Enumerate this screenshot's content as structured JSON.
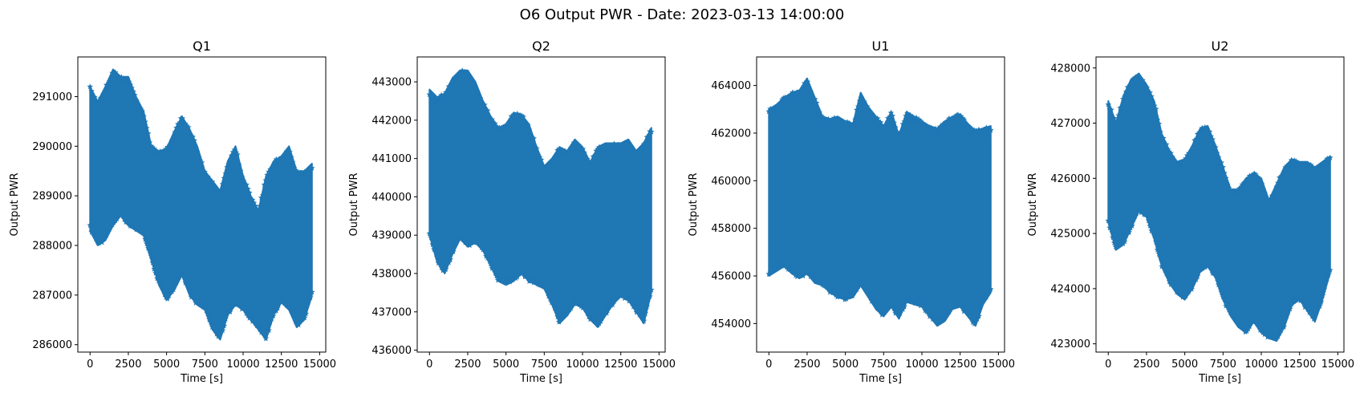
{
  "figure": {
    "title": "O6 Output PWR - Date: 2023-03-13 14:00:00"
  },
  "chart_data": [
    {
      "type": "scatter",
      "marker": "star",
      "color": "#1f77b4",
      "title": "Q1",
      "xlabel": "Time [s]",
      "ylabel": "Output PWR",
      "xlim": [
        -800,
        15400
      ],
      "ylim": [
        285850,
        291800
      ],
      "xticks": [
        0,
        2500,
        5000,
        7500,
        10000,
        12500,
        15000
      ],
      "yticks": [
        286000,
        287000,
        288000,
        289000,
        290000,
        291000
      ],
      "grid": false,
      "series": [
        {
          "x": [
            0,
            500,
            1000,
            1500,
            2000,
            2500,
            3000,
            3500,
            4000,
            4500,
            5000,
            5500,
            6000,
            6500,
            7000,
            7500,
            8000,
            8500,
            9000,
            9500,
            10000,
            10500,
            11000,
            11500,
            12000,
            12500,
            13000,
            13500,
            14000,
            14500
          ],
          "upper": [
            291200,
            290900,
            291200,
            291550,
            291400,
            291400,
            291000,
            290700,
            290000,
            289900,
            289950,
            290300,
            290600,
            290350,
            290000,
            289500,
            289300,
            289100,
            289700,
            290000,
            289400,
            289000,
            288700,
            289400,
            289700,
            289800,
            290000,
            289500,
            289500,
            289650
          ],
          "lower": [
            288300,
            288000,
            288100,
            288400,
            288600,
            288400,
            288300,
            288200,
            287700,
            287200,
            286900,
            287100,
            287400,
            287000,
            286800,
            286700,
            286300,
            286100,
            286600,
            286800,
            286700,
            286500,
            286300,
            286100,
            286600,
            286850,
            286700,
            286350,
            286500,
            287000
          ]
        }
      ]
    },
    {
      "type": "scatter",
      "marker": "star",
      "color": "#1f77b4",
      "title": "Q2",
      "xlabel": "Time [s]",
      "ylabel": "Output PWR",
      "xlim": [
        -800,
        15400
      ],
      "ylim": [
        435950,
        443650
      ],
      "xticks": [
        0,
        2500,
        5000,
        7500,
        10000,
        12500,
        15000
      ],
      "yticks": [
        436000,
        437000,
        438000,
        439000,
        440000,
        441000,
        442000,
        443000
      ],
      "grid": false,
      "series": [
        {
          "x": [
            0,
            500,
            1000,
            1500,
            2000,
            2500,
            3000,
            3500,
            4000,
            4500,
            5000,
            5500,
            6000,
            6500,
            7000,
            7500,
            8000,
            8500,
            9000,
            9500,
            10000,
            10500,
            11000,
            11500,
            12000,
            12500,
            13000,
            13500,
            14000,
            14500
          ],
          "upper": [
            442800,
            442600,
            442700,
            443100,
            443300,
            443300,
            443000,
            442500,
            442100,
            441800,
            441900,
            442200,
            442150,
            441900,
            441300,
            440800,
            441000,
            441300,
            441200,
            441500,
            441300,
            440900,
            441300,
            441400,
            441400,
            441400,
            441500,
            441200,
            441400,
            441800
          ],
          "lower": [
            439000,
            438300,
            438000,
            438500,
            438900,
            438700,
            438800,
            438600,
            438200,
            437800,
            437700,
            437800,
            438000,
            437800,
            437700,
            437600,
            437200,
            436700,
            436900,
            437200,
            437100,
            436800,
            436600,
            436900,
            437200,
            437400,
            437300,
            437000,
            436700,
            437500
          ]
        }
      ]
    },
    {
      "type": "scatter",
      "marker": "star",
      "color": "#1f77b4",
      "title": "U1",
      "xlabel": "Time [s]",
      "ylabel": "Output PWR",
      "xlim": [
        -800,
        15400
      ],
      "ylim": [
        452800,
        465200
      ],
      "xticks": [
        0,
        2500,
        5000,
        7500,
        10000,
        12500,
        15000
      ],
      "yticks": [
        454000,
        456000,
        458000,
        460000,
        462000,
        464000
      ],
      "grid": false,
      "series": [
        {
          "x": [
            0,
            500,
            1000,
            1500,
            2000,
            2500,
            3000,
            3500,
            4000,
            4500,
            5000,
            5500,
            6000,
            6500,
            7000,
            7500,
            8000,
            8500,
            9000,
            9500,
            10000,
            10500,
            11000,
            11500,
            12000,
            12500,
            13000,
            13500,
            14000,
            14500
          ],
          "upper": [
            463000,
            463200,
            463500,
            463700,
            463800,
            464300,
            463500,
            462700,
            462600,
            462700,
            462500,
            462400,
            463700,
            463100,
            462700,
            462300,
            462900,
            461900,
            462900,
            462700,
            462500,
            462300,
            462200,
            462500,
            462700,
            462800,
            462400,
            462100,
            462200,
            462300
          ],
          "lower": [
            456000,
            456200,
            456400,
            456100,
            455900,
            456100,
            455700,
            455600,
            455300,
            455100,
            455000,
            455100,
            455600,
            455100,
            454600,
            454300,
            454700,
            454200,
            454900,
            454800,
            454700,
            454300,
            453900,
            454100,
            454600,
            454700,
            454300,
            453900,
            454800,
            455300
          ]
        }
      ]
    },
    {
      "type": "scatter",
      "marker": "star",
      "color": "#1f77b4",
      "title": "U2",
      "xlabel": "Time [s]",
      "ylabel": "Output PWR",
      "xlim": [
        -800,
        15400
      ],
      "ylim": [
        422850,
        428200
      ],
      "xticks": [
        0,
        2500,
        5000,
        7500,
        10000,
        12500,
        15000
      ],
      "yticks": [
        423000,
        424000,
        425000,
        426000,
        427000,
        428000
      ],
      "grid": false,
      "series": [
        {
          "x": [
            0,
            500,
            1000,
            1500,
            2000,
            2500,
            3000,
            3500,
            4000,
            4500,
            5000,
            5500,
            6000,
            6500,
            7000,
            7500,
            8000,
            8500,
            9000,
            9500,
            10000,
            10500,
            11000,
            11500,
            12000,
            12500,
            13000,
            13500,
            14000,
            14500
          ],
          "upper": [
            427400,
            427000,
            427500,
            427800,
            427900,
            427700,
            427400,
            426800,
            426500,
            426300,
            426350,
            426600,
            426900,
            426950,
            426600,
            426200,
            425800,
            425800,
            426000,
            426100,
            426000,
            425600,
            425900,
            426200,
            426350,
            426300,
            426300,
            426200,
            426300,
            426400
          ],
          "lower": [
            425200,
            424700,
            424800,
            425100,
            425400,
            425300,
            424900,
            424400,
            424100,
            423900,
            423800,
            424000,
            424300,
            424400,
            424200,
            423800,
            423500,
            423300,
            423200,
            423400,
            423200,
            423100,
            423050,
            423300,
            423700,
            423800,
            423600,
            423400,
            423800,
            424300
          ]
        }
      ]
    }
  ]
}
